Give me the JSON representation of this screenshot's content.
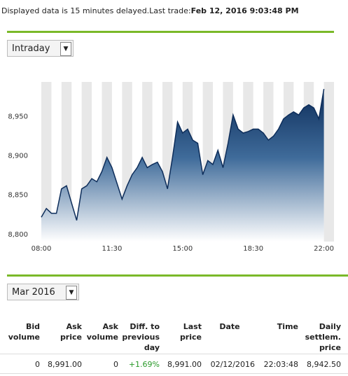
{
  "header": {
    "notice": "Displayed data is 15 minutes delayed.Last trade:",
    "last_trade": "Feb 12, 2016 9:03:48 PM"
  },
  "range_select": "Intraday",
  "chart_data": {
    "type": "area",
    "x": [
      8,
      8.25,
      8.5,
      8.75,
      9,
      9.25,
      9.5,
      9.75,
      10,
      10.25,
      10.5,
      10.75,
      11,
      11.25,
      11.5,
      11.75,
      12,
      12.25,
      12.5,
      12.75,
      13,
      13.25,
      13.5,
      13.75,
      14,
      14.25,
      14.5,
      14.75,
      15,
      15.25,
      15.5,
      15.75,
      16,
      16.25,
      16.5,
      16.75,
      17,
      17.25,
      17.5,
      17.75,
      18,
      18.25,
      18.5,
      18.75,
      19,
      19.25,
      19.5,
      19.75,
      20,
      20.25,
      20.5,
      20.75,
      21,
      21.25,
      21.5,
      21.75,
      22
    ],
    "values": [
      8822,
      8833,
      8827,
      8827,
      8858,
      8862,
      8840,
      8818,
      8858,
      8862,
      8871,
      8867,
      8880,
      8898,
      8885,
      8865,
      8845,
      8862,
      8876,
      8885,
      8898,
      8885,
      8889,
      8892,
      8880,
      8858,
      8898,
      8943,
      8929,
      8934,
      8920,
      8916,
      8876,
      8894,
      8889,
      8907,
      8885,
      8916,
      8952,
      8934,
      8929,
      8931,
      8934,
      8934,
      8929,
      8920,
      8925,
      8934,
      8947,
      8952,
      8956,
      8952,
      8961,
      8965,
      8961,
      8947,
      8985
    ],
    "color": "#0d2d5a",
    "xlim": [
      6.3,
      22.5
    ],
    "ylim": [
      8791,
      8994
    ],
    "xticks": [
      {
        "value": 8,
        "label": "08:00"
      },
      {
        "value": 11.5,
        "label": "11:30"
      },
      {
        "value": 15,
        "label": "15:00"
      },
      {
        "value": 18.5,
        "label": "18:30"
      },
      {
        "value": 22,
        "label": "22:00"
      }
    ],
    "yticks": [
      {
        "value": 8800,
        "label": "8,800"
      },
      {
        "value": 8850,
        "label": "8,850"
      },
      {
        "value": 8900,
        "label": "8,900"
      },
      {
        "value": 8950,
        "label": "8,950"
      }
    ],
    "grid": false
  },
  "contract_select": "Mar 2016",
  "table": {
    "columns": [
      "Bid volume",
      "Ask price",
      "Ask volume",
      "Diff. to previous day",
      "Last price",
      "Date",
      "Time",
      "Daily settlem. price"
    ],
    "rows": [
      [
        "0",
        "8,991.00",
        "0",
        "+1.69%",
        "8,991.00",
        "02/12/2016",
        "22:03:48",
        "8,942.50"
      ]
    ]
  }
}
